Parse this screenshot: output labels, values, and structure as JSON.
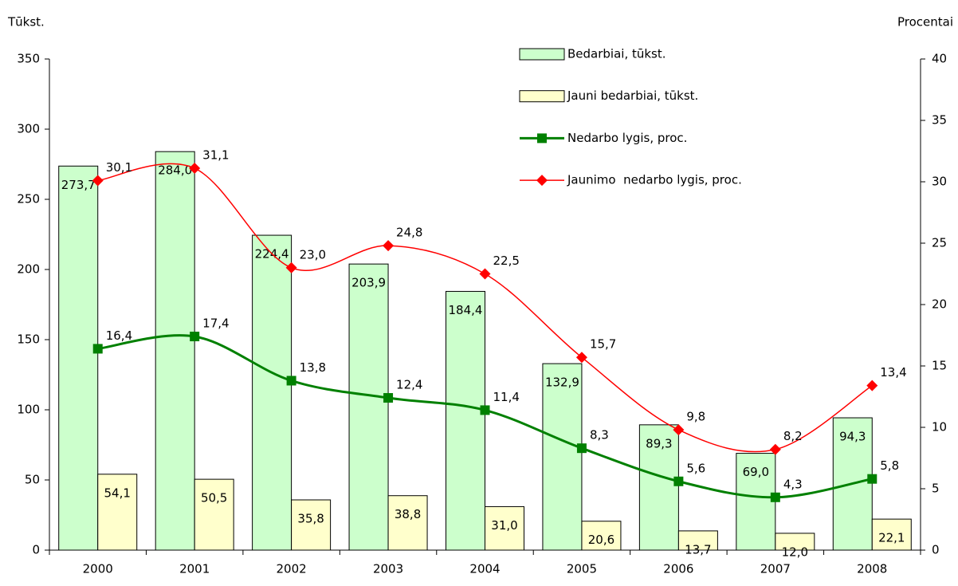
{
  "chart_data": {
    "type": "bar-line",
    "y_label": "Tūkst.",
    "y2_label": "Procentai",
    "categories": [
      "2000",
      "2001",
      "2002",
      "2003",
      "2004",
      "2005",
      "2006",
      "2007",
      "2008"
    ],
    "ylim": [
      0,
      350
    ],
    "yticks": [
      0,
      50,
      100,
      150,
      200,
      250,
      300,
      350
    ],
    "y2lim": [
      0,
      40
    ],
    "y2ticks": [
      0,
      5,
      10,
      15,
      20,
      25,
      30,
      35,
      40
    ],
    "series": [
      {
        "name": "Bedarbiai, tūkst.",
        "type": "bar",
        "color": "#ccffcc",
        "values": [
          273.7,
          284.0,
          224.4,
          203.9,
          184.4,
          132.9,
          89.3,
          69.0,
          94.3
        ],
        "value_labels": [
          "273,7",
          "284,0",
          "224,4",
          "203,9",
          "184,4",
          "132,9",
          "89,3",
          "69,0",
          "94,3"
        ]
      },
      {
        "name": "Jauni bedarbiai, tūkst.",
        "type": "bar",
        "color": "#ffffcc",
        "values": [
          54.1,
          50.5,
          35.8,
          38.8,
          31.0,
          20.6,
          13.7,
          12.0,
          22.1
        ],
        "value_labels": [
          "54,1",
          "50,5",
          "35,8",
          "38,8",
          "31,0",
          "20,6",
          "13,7",
          "12,0",
          "22,1"
        ]
      },
      {
        "name": "Nedarbo lygis, proc.",
        "type": "line",
        "axis": "y2",
        "color": "#008000",
        "marker": "square",
        "values": [
          16.4,
          17.4,
          13.8,
          12.4,
          11.4,
          8.3,
          5.6,
          4.3,
          5.8
        ],
        "value_labels": [
          "16,4",
          "17,4",
          "13,8",
          "12,4",
          "11,4",
          "8,3",
          "5,6",
          "4,3",
          "5,8"
        ]
      },
      {
        "name": "Jaunimo  nedarbo lygis, proc.",
        "type": "line",
        "axis": "y2",
        "color": "#ff0000",
        "marker": "diamond",
        "values": [
          30.1,
          31.1,
          23.0,
          24.8,
          22.5,
          15.7,
          9.8,
          8.2,
          13.4
        ],
        "value_labels": [
          "30,1",
          "31,1",
          "23,0",
          "24,8",
          "22,5",
          "15,7",
          "9,8",
          "8,2",
          "13,4"
        ]
      }
    ]
  }
}
